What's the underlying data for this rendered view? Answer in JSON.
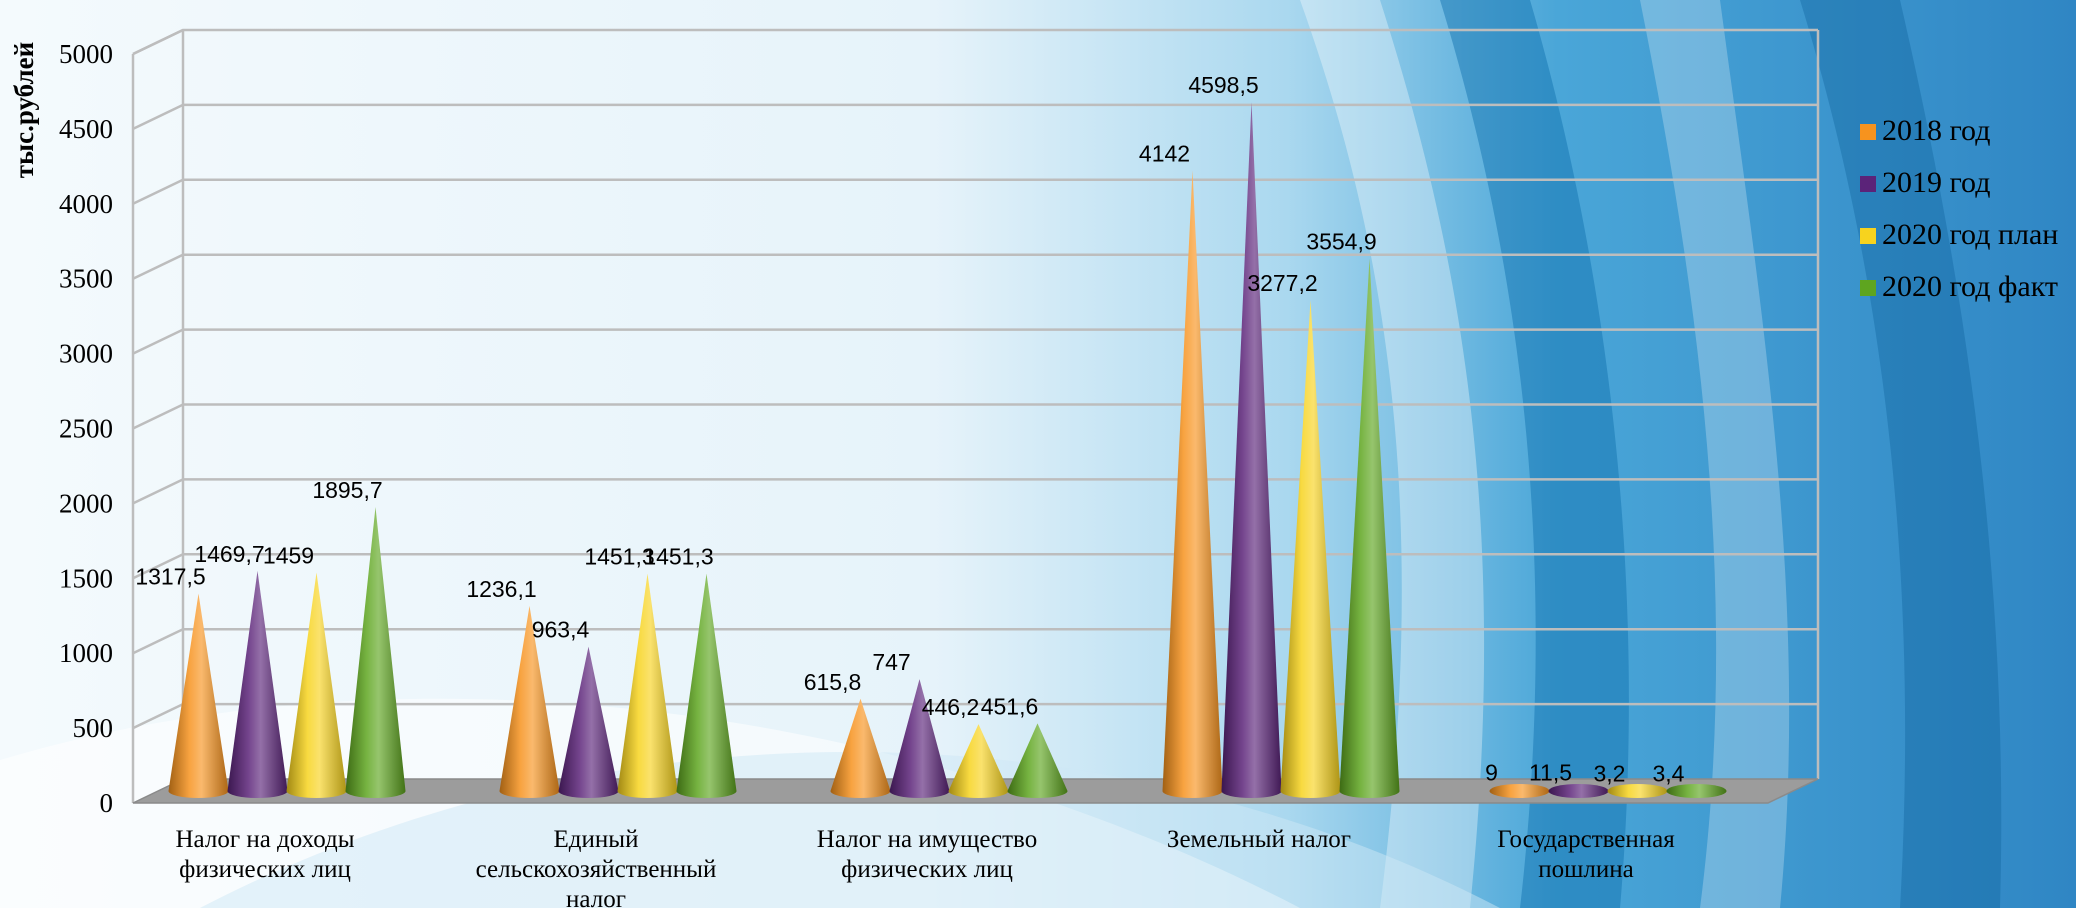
{
  "chart_data": {
    "type": "bar",
    "title": "",
    "xlabel": "",
    "ylabel": "тыс.рублей",
    "ylim": [
      0,
      5000
    ],
    "yticks": [
      "0",
      "500",
      "1000",
      "1500",
      "2000",
      "2500",
      "3000",
      "3500",
      "4000",
      "4500",
      "5000"
    ],
    "grid": true,
    "legend_position": "right",
    "shape": "cone-3d",
    "categories": [
      [
        "Налог на доходы",
        "физических лиц"
      ],
      [
        "Единый",
        "сельскохозяйственный",
        "налог"
      ],
      [
        "Налог на имущество",
        "физических лиц"
      ],
      [
        "Земельный налог"
      ],
      [
        "Государственная",
        "пошлина"
      ]
    ],
    "series": [
      {
        "name": "2018 год",
        "color": "#f7931e",
        "values": [
          1317.5,
          1236.1,
          615.8,
          4142,
          9
        ],
        "labels": [
          "1317,5",
          "1236,1",
          "615,8",
          "4142",
          "9"
        ]
      },
      {
        "name": "2019 год",
        "color": "#5b2379",
        "values": [
          1469.7,
          963.4,
          747,
          4598.5,
          11.5
        ],
        "labels": [
          "1469,7",
          "963,4",
          "747",
          "4598,5",
          "11,5"
        ]
      },
      {
        "name": "2020 год план",
        "color": "#f7d31e",
        "values": [
          1459,
          1451.3,
          446.2,
          3277.2,
          3.2
        ],
        "labels": [
          "1459",
          "1451,3",
          "446,2",
          "3277,2",
          "3,2"
        ]
      },
      {
        "name": "2020 год факт",
        "color": "#5ea51f",
        "values": [
          1895.7,
          1451.3,
          451.6,
          3554.9,
          3.4
        ],
        "labels": [
          "1895,7",
          "1451,3",
          "451,6",
          "3554,9",
          "3,4"
        ]
      }
    ]
  }
}
